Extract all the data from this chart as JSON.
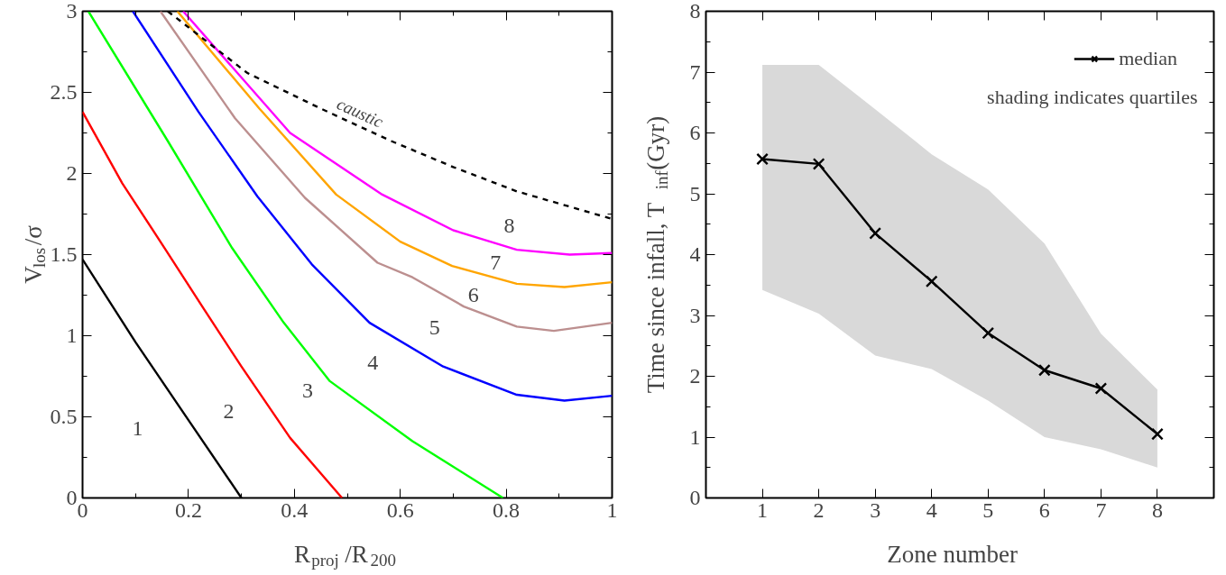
{
  "chart_data": [
    {
      "type": "line",
      "xlabel": "R$_{proj}$/R$_{200}$",
      "ylabel": "V$_{los}$/σ",
      "xlim": [
        0,
        1
      ],
      "ylim": [
        0,
        3
      ],
      "xticks": [
        0,
        0.2,
        0.4,
        0.6,
        0.8,
        1
      ],
      "yticks": [
        0,
        0.5,
        1,
        1.5,
        2,
        2.5,
        3
      ],
      "grid": false,
      "legend": false,
      "marker": "none",
      "line_style": "solid",
      "series": [
        {
          "color": "#000000",
          "x": [
            0,
            0.1,
            0.2,
            0.3
          ],
          "values": [
            1.47,
            0.96,
            0.48,
            0
          ]
        },
        {
          "color": "#ff0000",
          "x": [
            0,
            0.075,
            0.155,
            0.23,
            0.3,
            0.392,
            0.49
          ],
          "values": [
            2.38,
            1.94,
            1.54,
            1.16,
            0.81,
            0.37,
            0
          ]
        },
        {
          "color": "#00ff00",
          "x": [
            0.011,
            0.161,
            0.2825,
            0.38,
            0.467,
            0.623,
            0.794
          ],
          "values": [
            3,
            2.2,
            1.54,
            1.08,
            0.72,
            0.35,
            0
          ]
        },
        {
          "color": "#0000ff",
          "x": [
            0.095,
            0.219,
            0.33,
            0.433,
            0.542,
            0.681,
            0.82,
            0.91,
            1
          ],
          "values": [
            3,
            2.38,
            1.86,
            1.44,
            1.08,
            0.81,
            0.636,
            0.6,
            0.63
          ]
        },
        {
          "color": "#bc8f8f",
          "x": [
            0.147,
            0.288,
            0.42,
            0.557,
            0.623,
            0.72,
            0.82,
            0.89,
            1
          ],
          "values": [
            3,
            2.34,
            1.85,
            1.45,
            1.36,
            1.18,
            1.056,
            1.03,
            1.08
          ]
        },
        {
          "color": "#ffa500",
          "x": [
            0.179,
            0.334,
            0.479,
            0.6,
            0.698,
            0.82,
            0.91,
            1
          ],
          "values": [
            3,
            2.4,
            1.87,
            1.58,
            1.43,
            1.32,
            1.3,
            1.33
          ]
        },
        {
          "color": "#ff00ff",
          "x": [
            0.19,
            0.392,
            0.566,
            0.7,
            0.82,
            0.92,
            1
          ],
          "values": [
            3,
            2.25,
            1.87,
            1.65,
            1.53,
            1.5,
            1.51
          ]
        },
        {
          "name": "caustic",
          "color": "#000000",
          "line_style": "dashed",
          "x": [
            0.161,
            0.311,
            0.45,
            0.583,
            0.7,
            0.82,
            1
          ],
          "values": [
            3,
            2.62,
            2.4,
            2.2,
            2.04,
            1.89,
            1.72
          ]
        }
      ],
      "annotations": [
        "1",
        "2",
        "3",
        "4",
        "5",
        "6",
        "7",
        "8"
      ]
    },
    {
      "type": "line",
      "xlabel": "Zone number",
      "ylabel": "Time since infall, T$_{inf}$(Gyr)",
      "xlim": [
        0,
        9
      ],
      "ylim": [
        0,
        8
      ],
      "xticks": [
        1,
        2,
        3,
        4,
        5,
        6,
        7,
        8
      ],
      "yticks": [
        0,
        1,
        2,
        3,
        4,
        5,
        6,
        7,
        8
      ],
      "grid": false,
      "legend": "top right",
      "marker": "cross",
      "line_style": "solid",
      "x": [
        1,
        2,
        3,
        4,
        5,
        6,
        7,
        8
      ],
      "series": [
        {
          "name": "median",
          "color": "#000000",
          "values": [
            5.57,
            5.49,
            4.35,
            3.56,
            2.71,
            2.1,
            1.8,
            1.05
          ],
          "lower": [
            3.42,
            3.03,
            2.34,
            2.12,
            1.6,
            1.0,
            0.8,
            0.5
          ],
          "upper": [
            7.12,
            7.12,
            6.39,
            5.65,
            5.07,
            4.18,
            2.7,
            1.78
          ]
        }
      ],
      "annotations": [
        "shading indicates quartiles"
      ]
    }
  ]
}
